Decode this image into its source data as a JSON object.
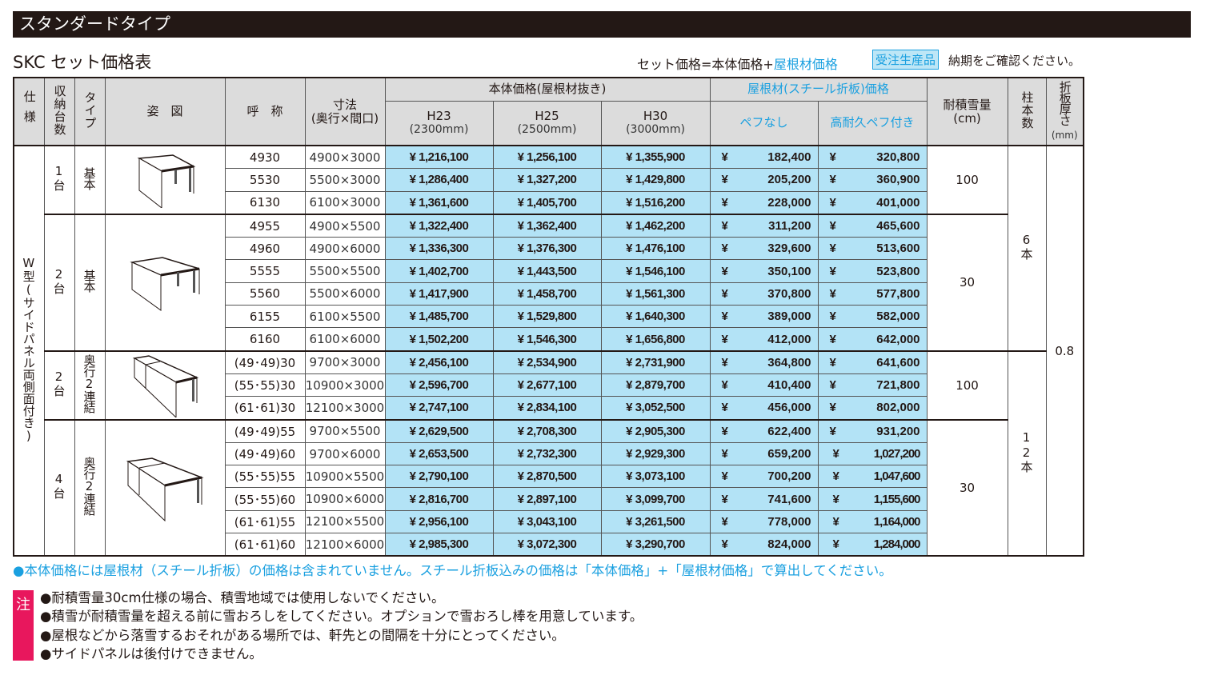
{
  "title_bar": "スタンダードタイプ",
  "subtitle": "SKC セット価格表",
  "formula": {
    "prefix": "セット価格=本体価格+",
    "highlight": "屋根材価格"
  },
  "made_to_order_badge": "受注生産品",
  "delivery_note": "納期をご確認ください。",
  "currency": "¥",
  "header": {
    "spec": "仕様",
    "units": "収納台数",
    "type": "タイプ",
    "figure": "姿　図",
    "name": "呼　称",
    "dimension": "寸法",
    "dimension_sub": "(奥行×間口)",
    "body_price": "本体価格(屋根材抜き)",
    "h23": "H23",
    "h23_sub": "(2300mm)",
    "h25": "H25",
    "h25_sub": "(2500mm)",
    "h30": "H30",
    "h30_sub": "(3000mm)",
    "roof_price": "屋根材(スチール折板)価格",
    "no_pef": "ペフなし",
    "with_pef": "高耐久ペフ付き",
    "snow": "耐積雪量",
    "snow_unit": "(cm)",
    "columns": "柱本数",
    "thickness": "折板厚さ",
    "thickness_unit": "(mm)"
  },
  "spec_label": "W型(サイドパネル両側面付き)",
  "thickness_value": "0.8",
  "groups": [
    {
      "units": "1台",
      "type": "基本",
      "snow": "100",
      "columns": "6本",
      "figure": "single-carport-icon",
      "rows": [
        {
          "name": "4930",
          "dim": "4900×3000",
          "h23": "1,216,100",
          "h25": "1,256,100",
          "h30": "1,355,900",
          "no_pef": "182,400",
          "with_pef": "320,800"
        },
        {
          "name": "5530",
          "dim": "5500×3000",
          "h23": "1,286,400",
          "h25": "1,327,200",
          "h30": "1,429,800",
          "no_pef": "205,200",
          "with_pef": "360,900"
        },
        {
          "name": "6130",
          "dim": "6100×3000",
          "h23": "1,361,600",
          "h25": "1,405,700",
          "h30": "1,516,200",
          "no_pef": "228,000",
          "with_pef": "401,000"
        }
      ]
    },
    {
      "units": "2台",
      "type": "基本",
      "snow": "30",
      "columns": null,
      "figure": "double-carport-icon",
      "rows": [
        {
          "name": "4955",
          "dim": "4900×5500",
          "h23": "1,322,400",
          "h25": "1,362,400",
          "h30": "1,462,200",
          "no_pef": "311,200",
          "with_pef": "465,600"
        },
        {
          "name": "4960",
          "dim": "4900×6000",
          "h23": "1,336,300",
          "h25": "1,376,300",
          "h30": "1,476,100",
          "no_pef": "329,600",
          "with_pef": "513,600"
        },
        {
          "name": "5555",
          "dim": "5500×5500",
          "h23": "1,402,700",
          "h25": "1,443,500",
          "h30": "1,546,100",
          "no_pef": "350,100",
          "with_pef": "523,800"
        },
        {
          "name": "5560",
          "dim": "5500×6000",
          "h23": "1,417,900",
          "h25": "1,458,700",
          "h30": "1,561,300",
          "no_pef": "370,800",
          "with_pef": "577,800"
        },
        {
          "name": "6155",
          "dim": "6100×5500",
          "h23": "1,485,700",
          "h25": "1,529,800",
          "h30": "1,640,300",
          "no_pef": "389,000",
          "with_pef": "582,000"
        },
        {
          "name": "6160",
          "dim": "6100×6000",
          "h23": "1,502,200",
          "h25": "1,546,300",
          "h30": "1,656,800",
          "no_pef": "412,000",
          "with_pef": "642,000"
        }
      ]
    },
    {
      "units": "2台",
      "type": "奥行2連結",
      "snow": "100",
      "columns": "12本",
      "figure": "tandem-carport-icon",
      "rows": [
        {
          "name": "(49･49)30",
          "dim": "9700×3000",
          "h23": "2,456,100",
          "h25": "2,534,900",
          "h30": "2,731,900",
          "no_pef": "364,800",
          "with_pef": "641,600"
        },
        {
          "name": "(55･55)30",
          "dim": "10900×3000",
          "h23": "2,596,700",
          "h25": "2,677,100",
          "h30": "2,879,700",
          "no_pef": "410,400",
          "with_pef": "721,800"
        },
        {
          "name": "(61･61)30",
          "dim": "12100×3000",
          "h23": "2,747,100",
          "h25": "2,834,100",
          "h30": "3,052,500",
          "no_pef": "456,000",
          "with_pef": "802,000"
        }
      ]
    },
    {
      "units": "4台",
      "type": "奥行2連結",
      "snow": "30",
      "columns": null,
      "figure": "tandem-double-carport-icon",
      "rows": [
        {
          "name": "(49･49)55",
          "dim": "9700×5500",
          "h23": "2,629,500",
          "h25": "2,708,300",
          "h30": "2,905,300",
          "no_pef": "622,400",
          "with_pef": "931,200"
        },
        {
          "name": "(49･49)60",
          "dim": "9700×6000",
          "h23": "2,653,500",
          "h25": "2,732,300",
          "h30": "2,929,300",
          "no_pef": "659,200",
          "with_pef": "1,027,200"
        },
        {
          "name": "(55･55)55",
          "dim": "10900×5500",
          "h23": "2,790,100",
          "h25": "2,870,500",
          "h30": "3,073,100",
          "no_pef": "700,200",
          "with_pef": "1,047,600"
        },
        {
          "name": "(55･55)60",
          "dim": "10900×6000",
          "h23": "2,816,700",
          "h25": "2,897,100",
          "h30": "3,099,700",
          "no_pef": "741,600",
          "with_pef": "1,155,600"
        },
        {
          "name": "(61･61)55",
          "dim": "12100×5500",
          "h23": "2,956,100",
          "h25": "3,043,100",
          "h30": "3,261,500",
          "no_pef": "778,000",
          "with_pef": "1,164,000"
        },
        {
          "name": "(61･61)60",
          "dim": "12100×6000",
          "h23": "2,985,300",
          "h25": "3,072,300",
          "h30": "3,290,700",
          "no_pef": "824,000",
          "with_pef": "1,284,000"
        }
      ]
    }
  ],
  "price_note": "●本体価格には屋根材（スチール折板）の価格は含まれていません。スチール折板込みの価格は「本体価格」+「屋根材価格」で算出してください。",
  "caution_label": "注",
  "cautions": [
    "●耐積雪量30cm仕様の場合、積雪地域では使用しないでください。",
    "●積雪が耐積雪量を超える前に雪おろしをしてください。オプションで雪おろし棒を用意しています。",
    "●屋根などから落雪するおそれがある場所では、軒先との間隔を十分にとってください。",
    "●サイドパネルは後付けできません。"
  ],
  "colors": {
    "accent_blue": "#1aa0e0",
    "price_bg": "#b3e3f6",
    "header_bg": "#dcdcdc",
    "caution_pink": "#e8175d",
    "title_bg": "#231815"
  }
}
